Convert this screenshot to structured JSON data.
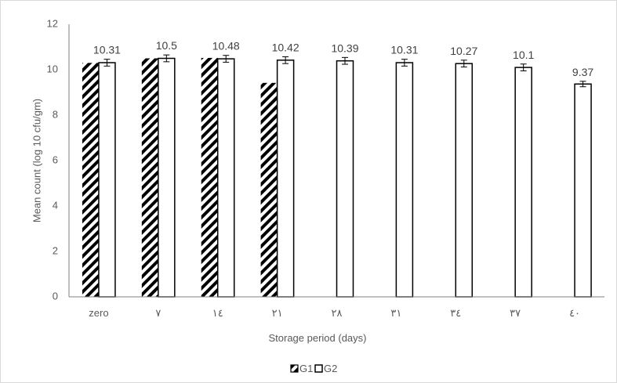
{
  "chart_data": {
    "type": "bar",
    "title": "",
    "xlabel": "Storage period (days)",
    "ylabel": "Mean count (log 10 cfu/gm)",
    "categories": [
      "zero",
      "٧",
      "١٤",
      "٢١",
      "٢٨",
      "٣١",
      "٣٤",
      "٣٧",
      "٤٠"
    ],
    "ylim": [
      0,
      12
    ],
    "yticks": [
      0,
      2,
      4,
      6,
      8,
      10,
      12
    ],
    "series": [
      {
        "name": "G1",
        "pattern": "diagonal-hatch",
        "values": [
          10.3,
          10.5,
          10.52,
          9.42,
          null,
          null,
          null,
          null,
          null
        ]
      },
      {
        "name": "G2",
        "pattern": "outline",
        "values": [
          10.31,
          10.5,
          10.48,
          10.42,
          10.39,
          10.31,
          10.27,
          10.1,
          9.37
        ],
        "error": [
          0.15,
          0.15,
          0.15,
          0.15,
          0.15,
          0.15,
          0.15,
          0.15,
          0.12
        ]
      }
    ],
    "data_labels": [
      "10.31",
      "10.5",
      "10.48",
      "10.42",
      "10.39",
      "10.31",
      "10.27",
      "10.1",
      "9.37"
    ],
    "legend_position": "bottom",
    "grid": false,
    "colors": {
      "bar_stroke": "#000000",
      "axis": "#808080",
      "text": "#595959",
      "border": "#d9d9d9"
    }
  }
}
